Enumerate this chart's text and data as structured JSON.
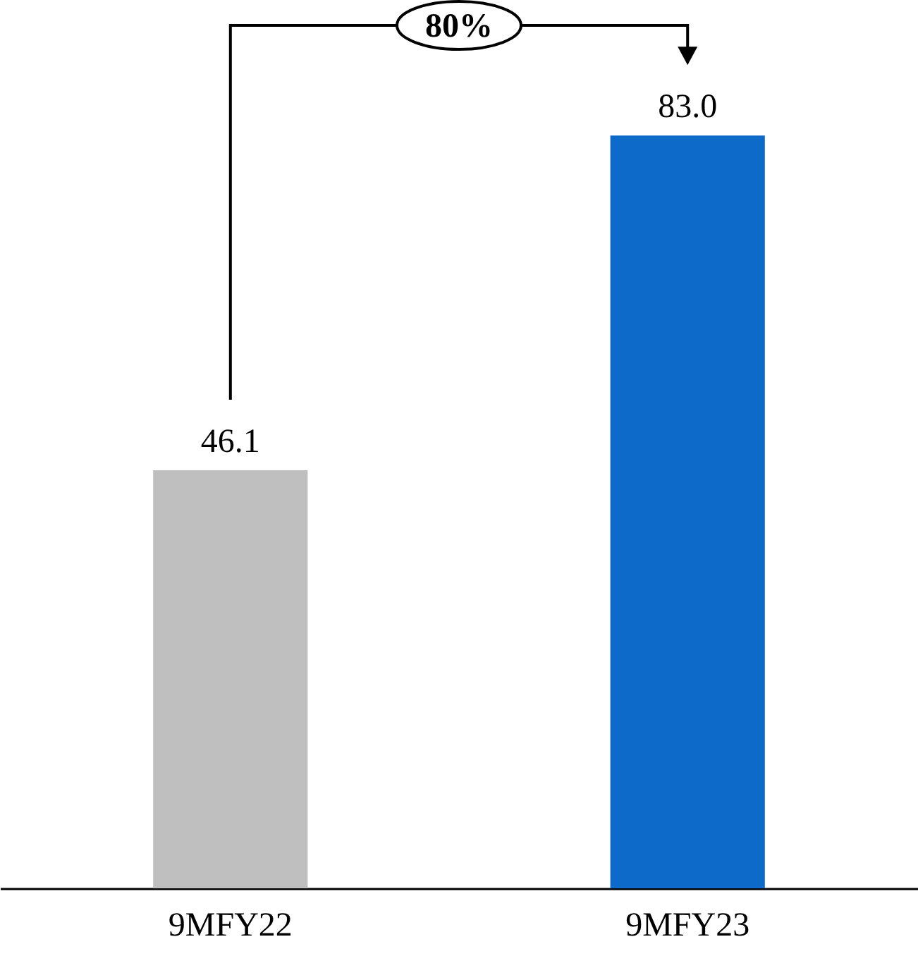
{
  "chart_data": {
    "type": "bar",
    "categories": [
      "9MFY22",
      "9MFY23"
    ],
    "values": [
      46.1,
      83.0
    ],
    "colors": [
      "#bfbfbf",
      "#0e6ac8"
    ],
    "data_labels": true,
    "value_labels": [
      "46.1",
      "83.0"
    ],
    "tick_labels": "x",
    "annotations": [
      "80%"
    ]
  }
}
